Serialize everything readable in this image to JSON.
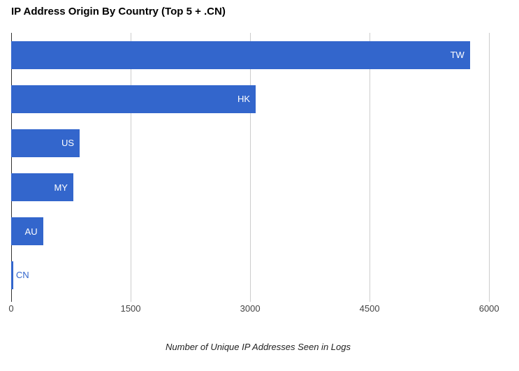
{
  "chart_data": {
    "type": "bar",
    "orientation": "horizontal",
    "title": "IP Address Origin By Country (Top 5 + .CN)",
    "xlabel": "Number of Unique IP Addresses Seen in Logs",
    "ylabel": "",
    "categories": [
      "TW",
      "HK",
      "US",
      "MY",
      "AU",
      "CN"
    ],
    "values": [
      5760,
      3070,
      860,
      780,
      400,
      25
    ],
    "xticks": [
      0,
      1500,
      3000,
      4500,
      6000
    ],
    "xlim": [
      0,
      6200
    ],
    "grid": true,
    "legend": "none",
    "bar_label_placement": "inside-end; CN label drawn outside bar because bar too small"
  },
  "colors": {
    "bar": "#3366cc",
    "bar_label_inside": "#ffffff",
    "bar_label_outside": "#3366cc",
    "gridline": "#cccccc",
    "baseline": "#333333",
    "tick_label": "#444444",
    "axis_title": "#222222",
    "chart_title": "#000000",
    "background": "#ffffff"
  }
}
